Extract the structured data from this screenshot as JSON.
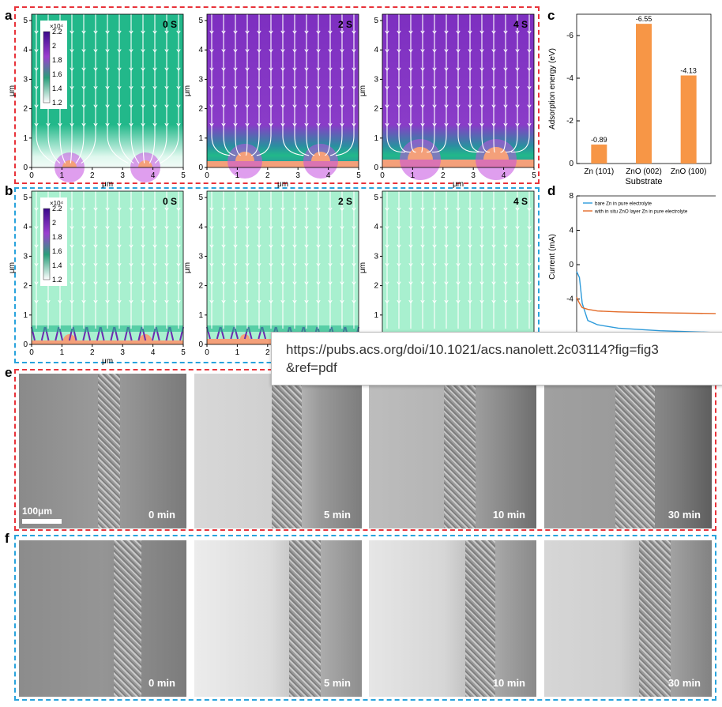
{
  "panel_labels": {
    "a": "a",
    "b": "b",
    "c": "c",
    "d": "d",
    "e": "e",
    "f": "f"
  },
  "sim": {
    "times": [
      "0 S",
      "2 S",
      "4 S"
    ],
    "x_ticks": [
      "0",
      "1",
      "2",
      "3",
      "4",
      "5"
    ],
    "y_ticks": [
      "0",
      "1",
      "2",
      "3",
      "4",
      "5"
    ],
    "axis_unit": "μm",
    "colorbar_exp": "×10⁴",
    "colorbar_ticks": [
      "2.2",
      "2",
      "1.8",
      "1.6",
      "1.4",
      "1.2"
    ],
    "colors": {
      "green": "#22b88a",
      "purple": "#7d2fc0",
      "pale": "#a8f0cf",
      "peach": "#f4a07a",
      "white": "#ffffff"
    }
  },
  "chart_data": [
    {
      "type": "bar",
      "panel": "c",
      "categories": [
        "Zn (101)",
        "ZnO (002)",
        "ZnO (100)"
      ],
      "values": [
        -0.89,
        -6.55,
        -4.13
      ],
      "data_labels": [
        "-0.89",
        "-6.55",
        "-4.13"
      ],
      "xlabel": "Substrate",
      "ylabel": "Adsorption energy (eV)",
      "ylim": [
        0,
        -7
      ],
      "y_ticks": [
        "0",
        "-2",
        "-4",
        "-6"
      ],
      "color": "#f79646"
    },
    {
      "type": "line",
      "panel": "d",
      "ylabel": "Current (mA)",
      "y_ticks": [
        "8",
        "4",
        "0",
        "-4"
      ],
      "series": [
        {
          "name": "bare Zn in pure electrolyte",
          "color": "#2e9bdb",
          "x": [
            0,
            2,
            4,
            8,
            15,
            30,
            60,
            100
          ],
          "y": [
            -0.8,
            -1.5,
            -4.5,
            -6.5,
            -7.0,
            -7.4,
            -7.7,
            -7.9
          ]
        },
        {
          "name": "with in situ ZnO layer Zn in pure electrolyte",
          "color": "#e36c2a",
          "x": [
            0,
            2,
            4,
            8,
            15,
            30,
            60,
            100
          ],
          "y": [
            -3.8,
            -4.5,
            -5.0,
            -5.2,
            -5.4,
            -5.5,
            -5.6,
            -5.7
          ]
        }
      ]
    }
  ],
  "photos": {
    "scale_bar": "100μm",
    "e_times": [
      "0 min",
      "5 min",
      "10 min",
      "30 min"
    ],
    "f_times": [
      "0 min",
      "5 min",
      "10 min",
      "30 min"
    ]
  },
  "tooltip": {
    "line1": "https://pubs.acs.org/doi/10.1021/acs.nanolett.2c03114?fig=fig3",
    "line2": "&ref=pdf"
  }
}
